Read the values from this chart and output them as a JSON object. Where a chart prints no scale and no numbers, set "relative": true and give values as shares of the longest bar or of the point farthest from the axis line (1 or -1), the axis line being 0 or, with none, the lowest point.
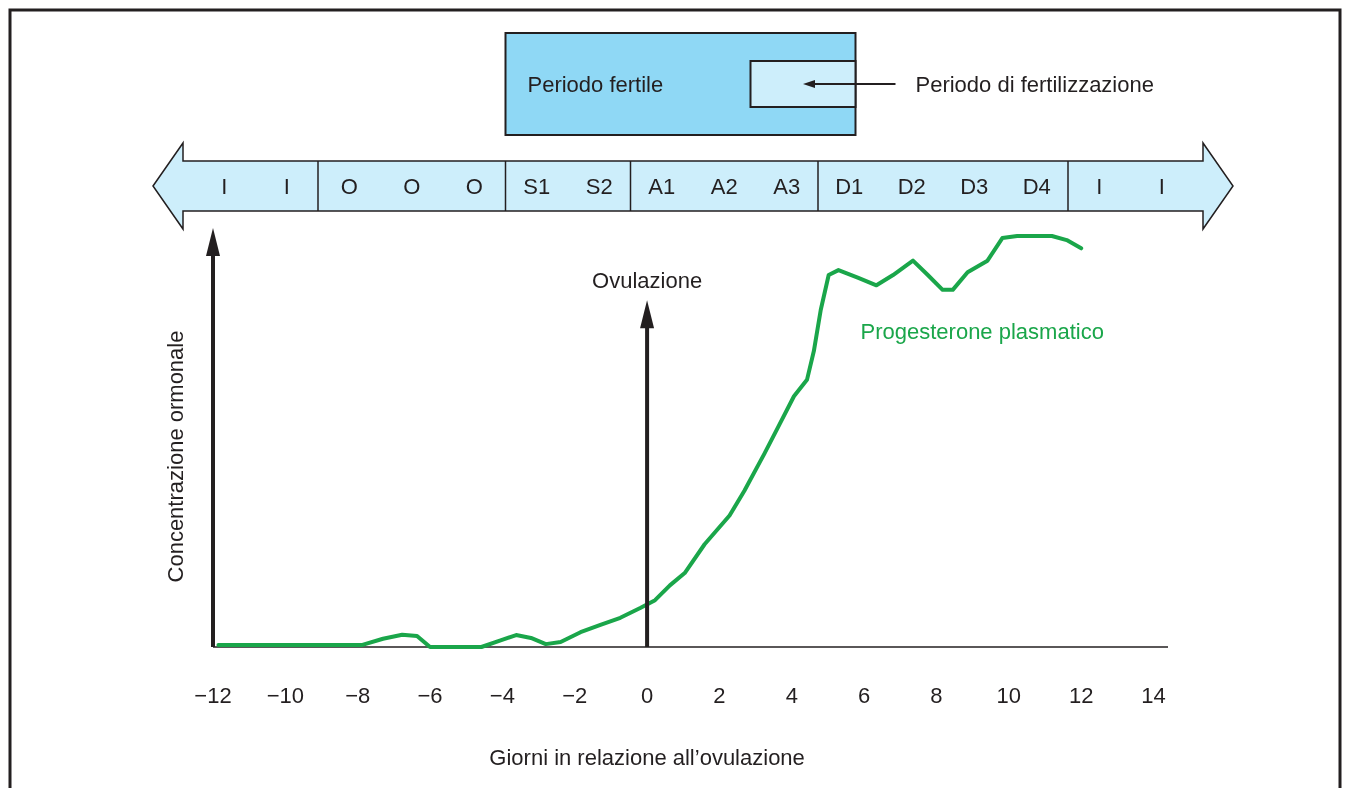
{
  "chart_data": {
    "type": "line",
    "relative": true,
    "xlabel": "Giorni in relazione all’ovulazione",
    "ylabel": "Concentrazione ormonale",
    "xlim": [
      -12,
      14.4
    ],
    "xticks": [
      -12,
      -10,
      -8,
      -6,
      -4,
      -2,
      0,
      2,
      4,
      6,
      8,
      10,
      12,
      14
    ],
    "grid": false,
    "series": [
      {
        "name": "Progesterone plasmatico",
        "color": "#1aa64a",
        "x": [
          -11.85,
          -7.87,
          -7.3,
          -6.77,
          -6.36,
          -6.0,
          -4.58,
          -4.03,
          -3.62,
          -3.21,
          -2.8,
          -2.39,
          -1.84,
          -1.29,
          -0.74,
          -0.19,
          0.22,
          0.63,
          1.04,
          1.59,
          2.28,
          2.69,
          3.24,
          3.65,
          4.06,
          4.42,
          4.61,
          4.8,
          5.02,
          5.29,
          5.84,
          6.34,
          6.8,
          7.35,
          7.76,
          8.17,
          8.45,
          8.86,
          9.41,
          9.82,
          10.23,
          11.19,
          11.6,
          12.0
        ],
        "values": [
          0.005,
          0.005,
          0.02,
          0.03,
          0.027,
          0,
          0,
          0.017,
          0.029,
          0.022,
          0.007,
          0.012,
          0.036,
          0.054,
          0.071,
          0.095,
          0.114,
          0.15,
          0.18,
          0.25,
          0.32,
          0.38,
          0.47,
          0.54,
          0.61,
          0.65,
          0.72,
          0.82,
          0.905,
          0.917,
          0.898,
          0.88,
          0.905,
          0.94,
          0.905,
          0.869,
          0.869,
          0.912,
          0.94,
          0.995,
          1,
          1,
          0.99,
          0.97
        ]
      }
    ],
    "ref_lines": [
      {
        "axis": "x",
        "value": 0,
        "label": "Ovulazione",
        "color": "#231f20"
      }
    ],
    "annotations": [
      "Periodo fertile",
      "Periodo di fertilizzazione",
      "I",
      "I",
      "O",
      "O",
      "O",
      "S1",
      "S2",
      "A1",
      "A2",
      "A3",
      "D1",
      "D2",
      "D3",
      "D4",
      "I",
      "I"
    ]
  }
}
